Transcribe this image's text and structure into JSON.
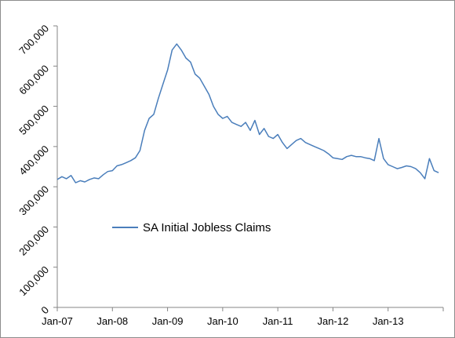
{
  "chart_data": {
    "type": "line",
    "title": "",
    "xlabel": "",
    "ylabel": "",
    "ylim": [
      0,
      700000
    ],
    "y_ticks": [
      0,
      100000,
      200000,
      300000,
      400000,
      500000,
      600000,
      700000
    ],
    "y_tick_labels": [
      "0",
      "100,000",
      "200,000",
      "300,000",
      "400,000",
      "500,000",
      "600,000",
      "700,000"
    ],
    "x_tick_labels": [
      "Jan-07",
      "Jan-08",
      "Jan-09",
      "Jan-10",
      "Jan-11",
      "Jan-12",
      "Jan-13"
    ],
    "x_range": [
      "2007-01",
      "2014-01"
    ],
    "grid": false,
    "legend": {
      "placement": "center-left",
      "entries": [
        "SA Initial Jobless Claims"
      ]
    },
    "series": [
      {
        "name": "SA Initial Jobless Claims",
        "color": "#4a7ebb",
        "x": [
          "2007-01",
          "2007-02",
          "2007-03",
          "2007-04",
          "2007-05",
          "2007-06",
          "2007-07",
          "2007-08",
          "2007-09",
          "2007-10",
          "2007-11",
          "2007-12",
          "2008-01",
          "2008-02",
          "2008-03",
          "2008-04",
          "2008-05",
          "2008-06",
          "2008-07",
          "2008-08",
          "2008-09",
          "2008-10",
          "2008-11",
          "2008-12",
          "2009-01",
          "2009-02",
          "2009-03",
          "2009-04",
          "2009-05",
          "2009-06",
          "2009-07",
          "2009-08",
          "2009-09",
          "2009-10",
          "2009-11",
          "2009-12",
          "2010-01",
          "2010-02",
          "2010-03",
          "2010-04",
          "2010-05",
          "2010-06",
          "2010-07",
          "2010-08",
          "2010-09",
          "2010-10",
          "2010-11",
          "2010-12",
          "2011-01",
          "2011-02",
          "2011-03",
          "2011-04",
          "2011-05",
          "2011-06",
          "2011-07",
          "2011-08",
          "2011-09",
          "2011-10",
          "2011-11",
          "2011-12",
          "2012-01",
          "2012-02",
          "2012-03",
          "2012-04",
          "2012-05",
          "2012-06",
          "2012-07",
          "2012-08",
          "2012-09",
          "2012-10",
          "2012-11",
          "2012-12",
          "2013-01",
          "2013-02",
          "2013-03",
          "2013-04",
          "2013-05",
          "2013-06",
          "2013-07",
          "2013-08",
          "2013-09",
          "2013-10",
          "2013-11",
          "2013-12"
        ],
        "values": [
          318000,
          325000,
          320000,
          328000,
          310000,
          315000,
          312000,
          318000,
          322000,
          320000,
          330000,
          338000,
          340000,
          352000,
          355000,
          360000,
          365000,
          372000,
          390000,
          440000,
          470000,
          480000,
          520000,
          555000,
          590000,
          640000,
          655000,
          640000,
          620000,
          610000,
          580000,
          570000,
          550000,
          530000,
          500000,
          480000,
          470000,
          475000,
          460000,
          455000,
          450000,
          460000,
          440000,
          465000,
          430000,
          445000,
          425000,
          420000,
          430000,
          410000,
          395000,
          405000,
          415000,
          420000,
          410000,
          405000,
          400000,
          395000,
          390000,
          382000,
          372000,
          370000,
          368000,
          375000,
          378000,
          375000,
          375000,
          372000,
          370000,
          365000,
          420000,
          370000,
          355000,
          350000,
          345000,
          348000,
          352000,
          350000,
          345000,
          335000,
          320000,
          370000,
          340000,
          335000
        ]
      }
    ]
  }
}
